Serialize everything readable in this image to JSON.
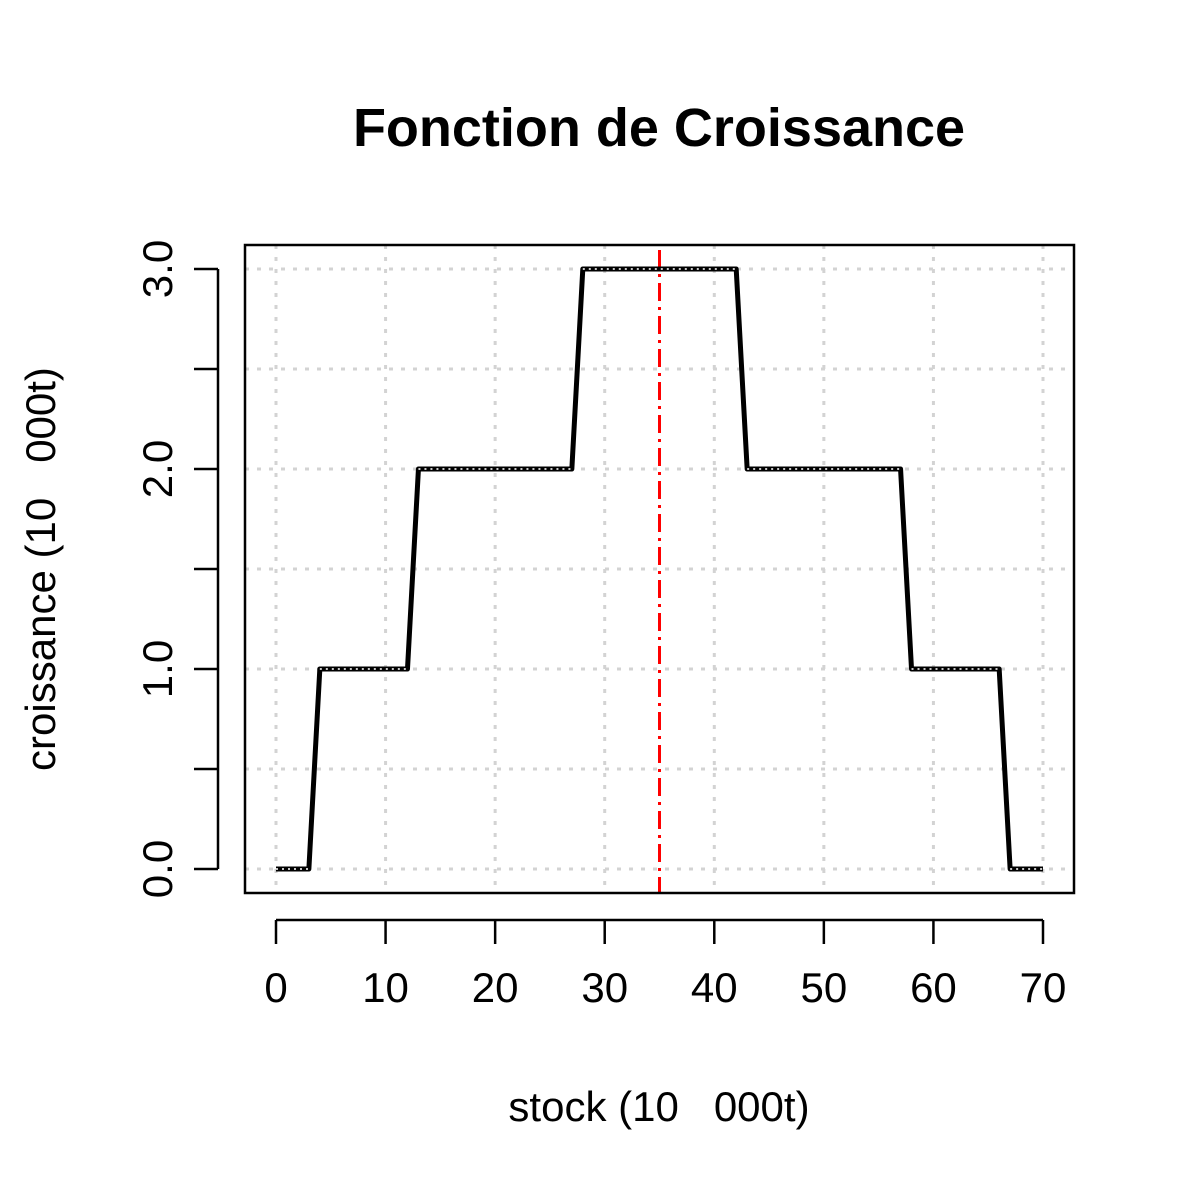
{
  "chart_data": {
    "type": "line",
    "title": "Fonction de Croissance",
    "xlabel": "stock (10   000t)",
    "ylabel": "croissance (10   000t)",
    "xlim": [
      0,
      70
    ],
    "ylim": [
      0,
      3
    ],
    "grid": true,
    "x_ticks": [
      0,
      10,
      20,
      30,
      40,
      50,
      60,
      70
    ],
    "x_tick_labels": [
      "0",
      "10",
      "20",
      "30",
      "40",
      "50",
      "60",
      "70"
    ],
    "y_ticks": [
      0,
      0.5,
      1,
      1.5,
      2,
      2.5,
      3
    ],
    "y_tick_labels": [
      "0.0",
      "",
      "1.0",
      "",
      "2.0",
      "",
      "3.0"
    ],
    "series": [
      {
        "name": "croissance",
        "color": "#000000",
        "x": [
          0,
          3,
          4,
          12,
          13,
          27,
          28,
          42,
          43,
          57,
          58,
          66,
          67,
          70
        ],
        "y": [
          0,
          0,
          1,
          1,
          2,
          2,
          3,
          3,
          2,
          2,
          1,
          1,
          0,
          0
        ]
      }
    ],
    "reference_lines": [
      {
        "axis": "x",
        "value": 35,
        "color": "#ff0000",
        "style": "dashdot"
      }
    ]
  }
}
